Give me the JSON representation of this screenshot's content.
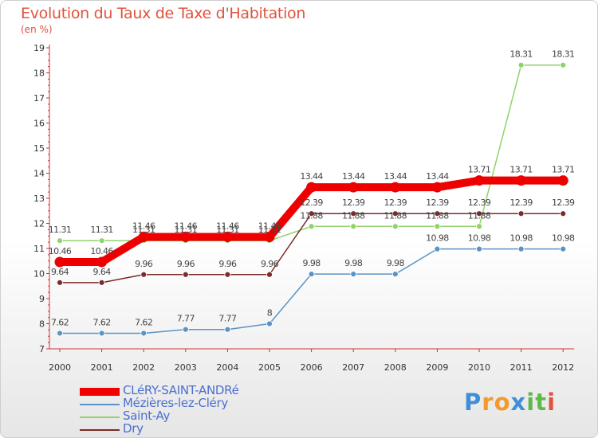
{
  "header": {
    "title": "Evolution du Taux de Taxe d'Habitation",
    "subtitle": "(en %)"
  },
  "brand": {
    "letters": [
      "P",
      "r",
      "o",
      "x",
      "i",
      "t",
      "i"
    ],
    "colors": [
      "#3f8fd8",
      "#f29a2e",
      "#f29a2e",
      "#3f8fd8",
      "#5fb84a",
      "#5fb84a",
      "#e0533d"
    ]
  },
  "chart_data": {
    "type": "line",
    "title": "Evolution du Taux de Taxe d'Habitation",
    "subtitle": "(en %)",
    "x": [
      "2000",
      "2001",
      "2002",
      "2003",
      "2004",
      "2005",
      "2006",
      "2007",
      "2008",
      "2009",
      "2010",
      "2011",
      "2012"
    ],
    "y_ticks": [
      "7",
      "8",
      "9",
      "10",
      "11",
      "12",
      "13",
      "14",
      "15",
      "16",
      "17",
      "18",
      "19"
    ],
    "ylim": [
      7,
      19
    ],
    "grid": false,
    "legend_position": "bottom-left",
    "series": [
      {
        "name": "CLéRY-SAINT-ANDRé",
        "color": "#ee0000",
        "emphasis": "thick",
        "values": [
          10.46,
          10.46,
          11.46,
          11.46,
          11.46,
          11.46,
          13.44,
          13.44,
          13.44,
          13.44,
          13.71,
          13.71,
          13.71
        ],
        "labels": [
          "10.46",
          "10.46",
          "11.46",
          "11.46",
          "11.46",
          "11.46",
          "13.44",
          "13.44",
          "13.44",
          "13.44",
          "13.71",
          "13.71",
          "13.71"
        ]
      },
      {
        "name": "Mézières-lez-Cléry",
        "color": "#5b93c7",
        "emphasis": "thin",
        "values": [
          7.62,
          7.62,
          7.62,
          7.77,
          7.77,
          8,
          9.98,
          9.98,
          9.98,
          10.98,
          10.98,
          10.98,
          10.98
        ],
        "labels": [
          "7.62",
          "7.62",
          "7.62",
          "7.77",
          "7.77",
          "8",
          "9.98",
          "9.98",
          "9.98",
          "10.98",
          "10.98",
          "10.98",
          "10.98"
        ]
      },
      {
        "name": "Saint-Ay",
        "color": "#8fd36a",
        "emphasis": "thin",
        "values": [
          11.31,
          11.31,
          11.31,
          11.31,
          11.31,
          11.31,
          11.88,
          11.88,
          11.88,
          11.88,
          11.88,
          18.31,
          18.31
        ],
        "labels": [
          "11.31",
          "11.31",
          "11.31",
          "11.31",
          "11.31",
          "11.31",
          "11.88",
          "11.88",
          "11.88",
          "11.88",
          "11.88",
          "18.31",
          "18.31"
        ]
      },
      {
        "name": "Dry",
        "color": "#7a2b2b",
        "emphasis": "thin",
        "values": [
          9.64,
          9.64,
          9.96,
          9.96,
          9.96,
          9.96,
          12.39,
          12.39,
          12.39,
          12.39,
          12.39,
          12.39,
          12.39
        ],
        "labels": [
          "9.64",
          "9.64",
          "9.96",
          "9.96",
          "9.96",
          "9.96",
          "12.39",
          "12.39",
          "12.39",
          "12.39",
          "12.39",
          "12.39",
          "12.39"
        ]
      }
    ]
  }
}
